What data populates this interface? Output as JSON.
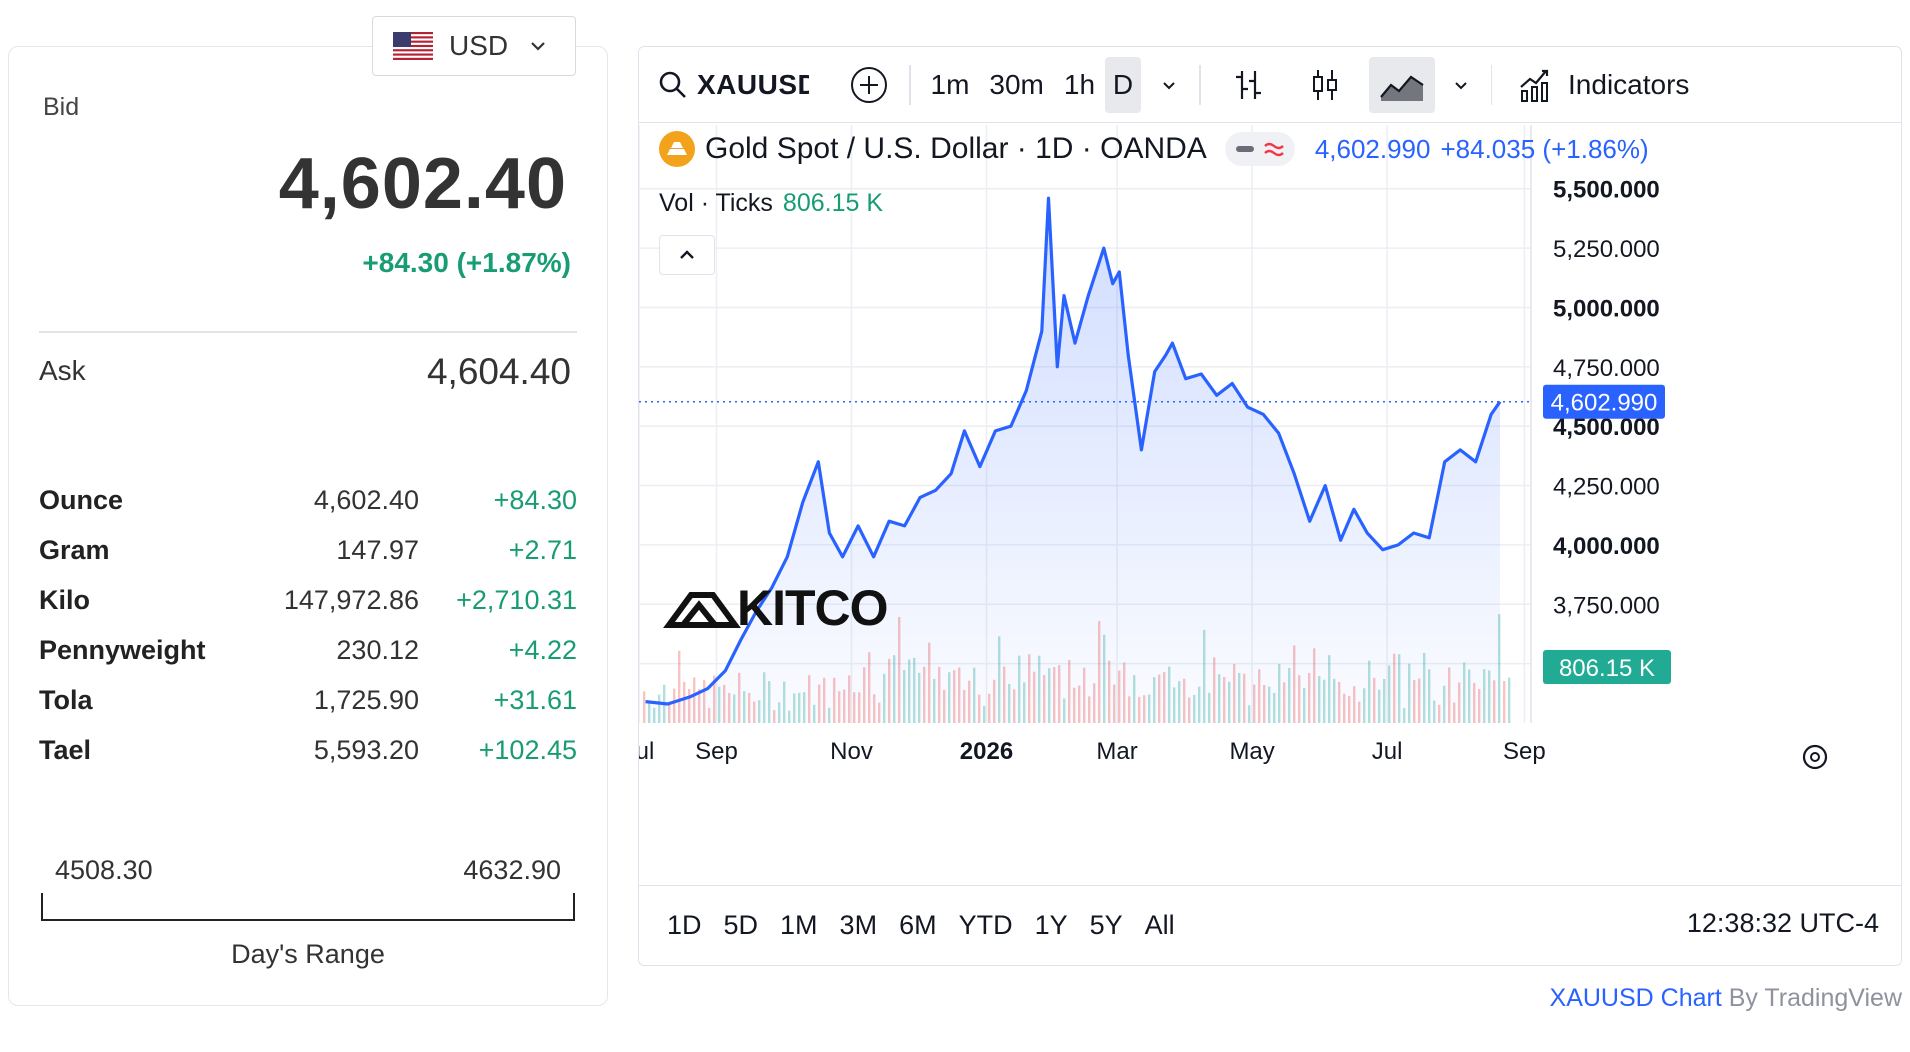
{
  "quote_panel": {
    "currency": {
      "code": "USD",
      "flag_icon": "us-flag-icon"
    },
    "bid": {
      "label": "Bid",
      "value": "4,602.40",
      "change": "+84.30 (+1.87%)"
    },
    "ask": {
      "label": "Ask",
      "value": "4,604.40"
    },
    "units": [
      {
        "name": "Ounce",
        "price": "4,602.40",
        "change": "+84.30"
      },
      {
        "name": "Gram",
        "price": "147.97",
        "change": "+2.71"
      },
      {
        "name": "Kilo",
        "price": "147,972.86",
        "change": "+2,710.31"
      },
      {
        "name": "Pennyweight",
        "price": "230.12",
        "change": "+4.22"
      },
      {
        "name": "Tola",
        "price": "1,725.90",
        "change": "+31.61"
      },
      {
        "name": "Tael",
        "price": "5,593.20",
        "change": "+102.45"
      }
    ],
    "days_range": {
      "low": "4508.30",
      "high": "4632.90",
      "label": "Day's Range"
    },
    "colors": {
      "positive": "#179c73"
    }
  },
  "chart_widget": {
    "toolbar": {
      "symbol": "XAUUSD",
      "intervals": [
        "1m",
        "30m",
        "1h",
        "D"
      ],
      "active_interval": "D",
      "indicators_label": "Indicators"
    },
    "legend": {
      "title": "Gold Spot / U.S. Dollar · 1D · OANDA",
      "price": "4,602.990",
      "change": "+84.035 (+1.86%)",
      "volume_label": "Vol · Ticks",
      "volume_value": "806.15 K"
    },
    "watermark": "KITCO",
    "price_tag": "4,602.990",
    "volume_tag": "806.15 K",
    "range_tabs": [
      "1D",
      "5D",
      "1M",
      "3M",
      "6M",
      "YTD",
      "1Y",
      "5Y",
      "All"
    ],
    "clock": "12:38:32 UTC-4",
    "colors": {
      "line": "#2962ff",
      "up_volume": "#26a69a",
      "down_volume": "#ef5350",
      "price_tag": "#2962ff",
      "volume_tag": "#22ab94"
    }
  },
  "attribution": {
    "link": "XAUUSD Chart",
    "rest": "By TradingView"
  },
  "chart_data": {
    "type": "area",
    "title": "Gold Spot / U.S. Dollar · 1D · OANDA",
    "xlabel": "",
    "ylabel": "",
    "x_ticks": [
      "Jul",
      "Sep",
      "Nov",
      "2026",
      "Mar",
      "May",
      "Jul",
      "Sep"
    ],
    "y_ticks": [
      "3,500.000",
      "3,750.000",
      "4,000.000",
      "4,250.000",
      "4,500.000",
      "4,750.000",
      "5,000.000",
      "5,250.000",
      "5,500.000"
    ],
    "ylim": [
      3250,
      5600
    ],
    "last_value": 4602.99,
    "series": [
      {
        "x": [
          "2025-07-31",
          "2025-08-10",
          "2025-08-20",
          "2025-08-28",
          "2025-09-05",
          "2025-09-12",
          "2025-09-19",
          "2025-09-26",
          "2025-10-03",
          "2025-10-10",
          "2025-10-17",
          "2025-10-22",
          "2025-10-28",
          "2025-11-04",
          "2025-11-11",
          "2025-11-18",
          "2025-11-25",
          "2025-12-02",
          "2025-12-09",
          "2025-12-16",
          "2025-12-22",
          "2025-12-29",
          "2026-01-05",
          "2026-01-12",
          "2026-01-19",
          "2026-01-26",
          "2026-01-29",
          "2026-02-02",
          "2026-02-05",
          "2026-02-10",
          "2026-02-16",
          "2026-02-23",
          "2026-02-27",
          "2026-03-02",
          "2026-03-06",
          "2026-03-12",
          "2026-03-18",
          "2026-03-23",
          "2026-03-26",
          "2026-04-01",
          "2026-04-08",
          "2026-04-15",
          "2026-04-22",
          "2026-04-29",
          "2026-05-06",
          "2026-05-13",
          "2026-05-20",
          "2026-05-27",
          "2026-06-03",
          "2026-06-10",
          "2026-06-16",
          "2026-06-22",
          "2026-06-29",
          "2026-07-06",
          "2026-07-13",
          "2026-07-20",
          "2026-07-27",
          "2026-08-03",
          "2026-08-10",
          "2026-08-17",
          "2026-08-21"
        ],
        "values": [
          3340,
          3330,
          3360,
          3395,
          3470,
          3600,
          3720,
          3820,
          3950,
          4180,
          4350,
          4050,
          3950,
          4080,
          3950,
          4100,
          4080,
          4200,
          4230,
          4300,
          4480,
          4330,
          4480,
          4500,
          4650,
          4900,
          5460,
          4750,
          5050,
          4850,
          5050,
          5250,
          5100,
          5150,
          4800,
          4400,
          4730,
          4800,
          4850,
          4700,
          4720,
          4630,
          4680,
          4580,
          4550,
          4470,
          4300,
          4100,
          4250,
          4020,
          4150,
          4050,
          3980,
          4000,
          4050,
          4030,
          4350,
          4400,
          4350,
          4550,
          4603
        ]
      }
    ],
    "volume": {
      "last": "806.15 K"
    }
  }
}
